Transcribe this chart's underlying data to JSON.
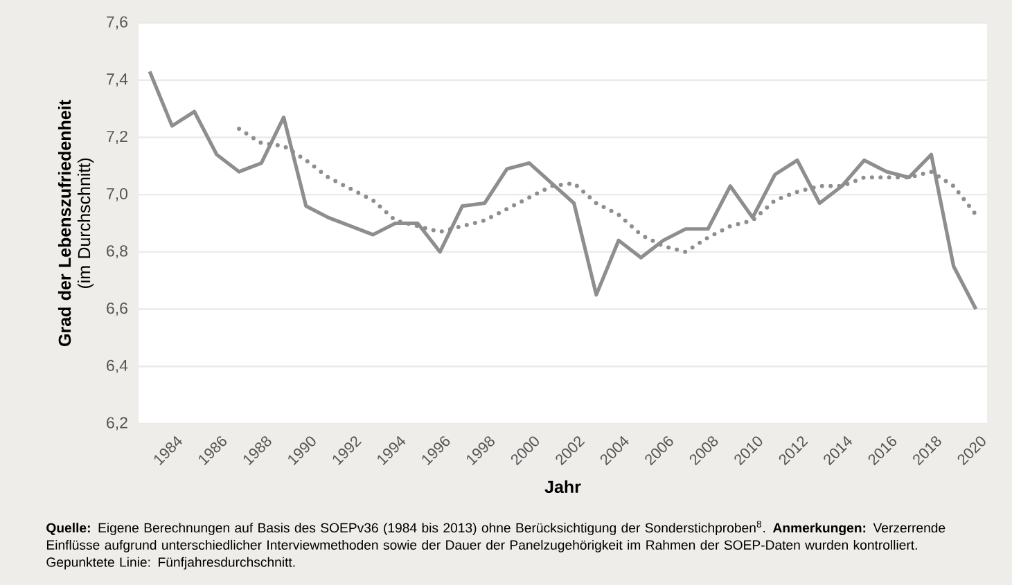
{
  "chart_data": {
    "type": "line",
    "xlabel": "Jahr",
    "ylabel": "**Grad der Lebenszufriedenheit** (im Durchschnitt)",
    "annotations": [
      "**Quelle:** Eigene Berechnungen auf Basis des SOEPv36 (1984 bis 2013) ohne Berücksichtigung der Sonderstichproben$^{8}$. **Anmerkungen:** Verzerrende Einflüsse aufgrund unterschiedlicher Interviewmethoden sowie der Dauer der Panelzugehörigkeit im Rahmen der SOEP-Daten wurden kontrolliert. Gepunktete Linie: Fünfjahresdurchschnitt."
    ],
    "x": [
      1983,
      1984,
      1985,
      1986,
      1987,
      1988,
      1989,
      1990,
      1991,
      1992,
      1993,
      1994,
      1995,
      1996,
      1997,
      1998,
      1999,
      2000,
      2001,
      2002,
      2003,
      2004,
      2005,
      2006,
      2007,
      2008,
      2009,
      2010,
      2011,
      2012,
      2013,
      2014,
      2015,
      2016,
      2017,
      2018,
      2019,
      2020
    ],
    "series": [
      {
        "color": "#8e8e8e",
        "line_style": "solid",
        "values": [
          7.43,
          7.24,
          7.29,
          7.14,
          7.08,
          7.11,
          7.27,
          6.96,
          6.92,
          6.89,
          6.86,
          6.9,
          6.9,
          6.8,
          6.96,
          6.97,
          7.09,
          7.11,
          7.04,
          6.97,
          6.65,
          6.84,
          6.78,
          6.84,
          6.88,
          6.88,
          7.03,
          6.92,
          7.07,
          7.12,
          6.97,
          7.03,
          7.12,
          7.08,
          7.06,
          7.14,
          6.75,
          6.6
        ]
      },
      {
        "color": "#8e8e8e",
        "line_style": "dotted",
        "values": [
          null,
          null,
          null,
          null,
          7.23,
          7.18,
          7.17,
          7.12,
          7.06,
          7.02,
          6.98,
          6.91,
          6.89,
          6.87,
          6.89,
          6.91,
          6.95,
          6.99,
          7.03,
          7.04,
          6.97,
          6.93,
          6.86,
          6.82,
          6.8,
          6.85,
          6.89,
          6.91,
          6.98,
          7.01,
          7.03,
          7.03,
          7.06,
          7.06,
          7.06,
          7.08,
          7.03,
          6.93
        ]
      }
    ],
    "xlim": [
      1982.5,
      2020.5
    ],
    "ylim": [
      6.2,
      7.6
    ],
    "xticks": [
      1984,
      1986,
      1988,
      1990,
      1992,
      1994,
      1996,
      1998,
      2000,
      2002,
      2004,
      2006,
      2008,
      2010,
      2012,
      2014,
      2016,
      2018,
      2020
    ],
    "yticks": [
      {
        "value": 6.2,
        "label": "6,2"
      },
      {
        "value": 6.4,
        "label": "6,4"
      },
      {
        "value": 6.6,
        "label": "6,6"
      },
      {
        "value": 6.8,
        "label": "6,8"
      },
      {
        "value": 7.0,
        "label": "7,0"
      },
      {
        "value": 7.2,
        "label": "7,2"
      },
      {
        "value": 7.4,
        "label": "7,4"
      },
      {
        "value": 7.6,
        "label": "7,6"
      }
    ],
    "grid": "y"
  }
}
